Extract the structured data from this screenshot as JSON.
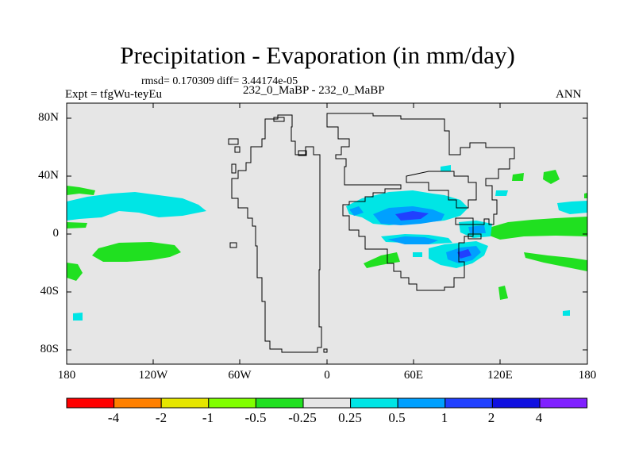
{
  "title": "Precipitation - Evaporation (in mm/day)",
  "stats": "rmsd= 0.170309 diff= 3.44174e-05",
  "expt": "Expt = tfgWu-teyEu",
  "case": "232_0_MaBP - 232_0_MaBP",
  "season": "ANN",
  "y_ticks": [
    "80N",
    "40N",
    "0",
    "40S",
    "80S"
  ],
  "x_ticks": [
    "180",
    "120W",
    "60W",
    "0",
    "60E",
    "120E",
    "180"
  ],
  "colorbar": {
    "labels": [
      "-4",
      "-2",
      "-1",
      "-0.5",
      "-0.25",
      "0.25",
      "0.5",
      "1",
      "2",
      "4"
    ],
    "colors": [
      "#ff0000",
      "#ff8000",
      "#e6e600",
      "#80ff00",
      "#20e020",
      "#e6e6e6",
      "#00e5e5",
      "#00a0ff",
      "#2040ff",
      "#1010e0",
      "#8020ff"
    ]
  },
  "map": {
    "background": "#e6e6e6",
    "ocean_fill": "#e6e6e6"
  }
}
